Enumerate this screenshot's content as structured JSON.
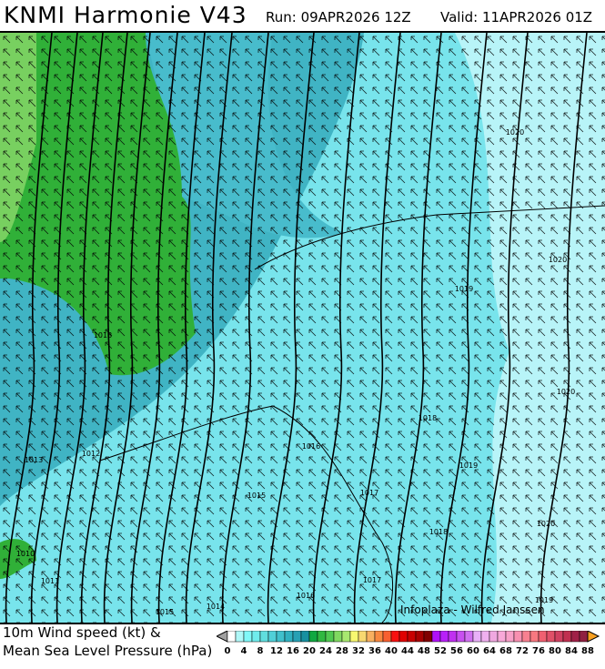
{
  "header": {
    "title": "KNMI Harmonie V43",
    "run": "Run: 09APR2026 12Z",
    "valid": "Valid: 11APR2026 01Z"
  },
  "legend": {
    "line1": "10m Wind speed (kt) &",
    "line2": "Mean Sea Level Pressure (hPa)"
  },
  "credit": "Infoplaza - Wilfred Janssen",
  "colorbar": {
    "tick_labels": [
      "0",
      "4",
      "8",
      "12",
      "16",
      "20",
      "24",
      "28",
      "32",
      "36",
      "40",
      "44",
      "48",
      "52",
      "56",
      "60",
      "64",
      "68",
      "72",
      "76",
      "80",
      "84",
      "88"
    ],
    "colors": [
      "#ffffff",
      "#b0f8f8",
      "#80f8f8",
      "#70ecec",
      "#60dede",
      "#50d0d8",
      "#40c0cc",
      "#30b0c0",
      "#28a0b4",
      "#1890a0",
      "#10a840",
      "#30b840",
      "#50c850",
      "#80d860",
      "#a8e870",
      "#f8f870",
      "#f8d870",
      "#f8b060",
      "#f88840",
      "#f86030",
      "#f81010",
      "#e00000",
      "#c80000",
      "#a80000",
      "#800000",
      "#b010f8",
      "#b820f8",
      "#c030f0",
      "#c850f0",
      "#d070f0",
      "#e8b0f8",
      "#f0b0f0",
      "#f0a8e0",
      "#f8a8d8",
      "#f8a0c8",
      "#f890b0",
      "#f88090",
      "#f87880",
      "#f06070",
      "#e05068",
      "#d04060",
      "#c03050",
      "#a02048",
      "#902040"
    ],
    "under_color": "#a0a0a0",
    "over_color": "#f8a020"
  },
  "isobar_labels": [
    "1020",
    "1020",
    "1019",
    "1013",
    "1020",
    "1018",
    "1016",
    "1012",
    "1019",
    "1013",
    "1015",
    "1017",
    "1018",
    "1020",
    "1010",
    "1011",
    "1017",
    "1016",
    "1015",
    "1014",
    "1019"
  ]
}
